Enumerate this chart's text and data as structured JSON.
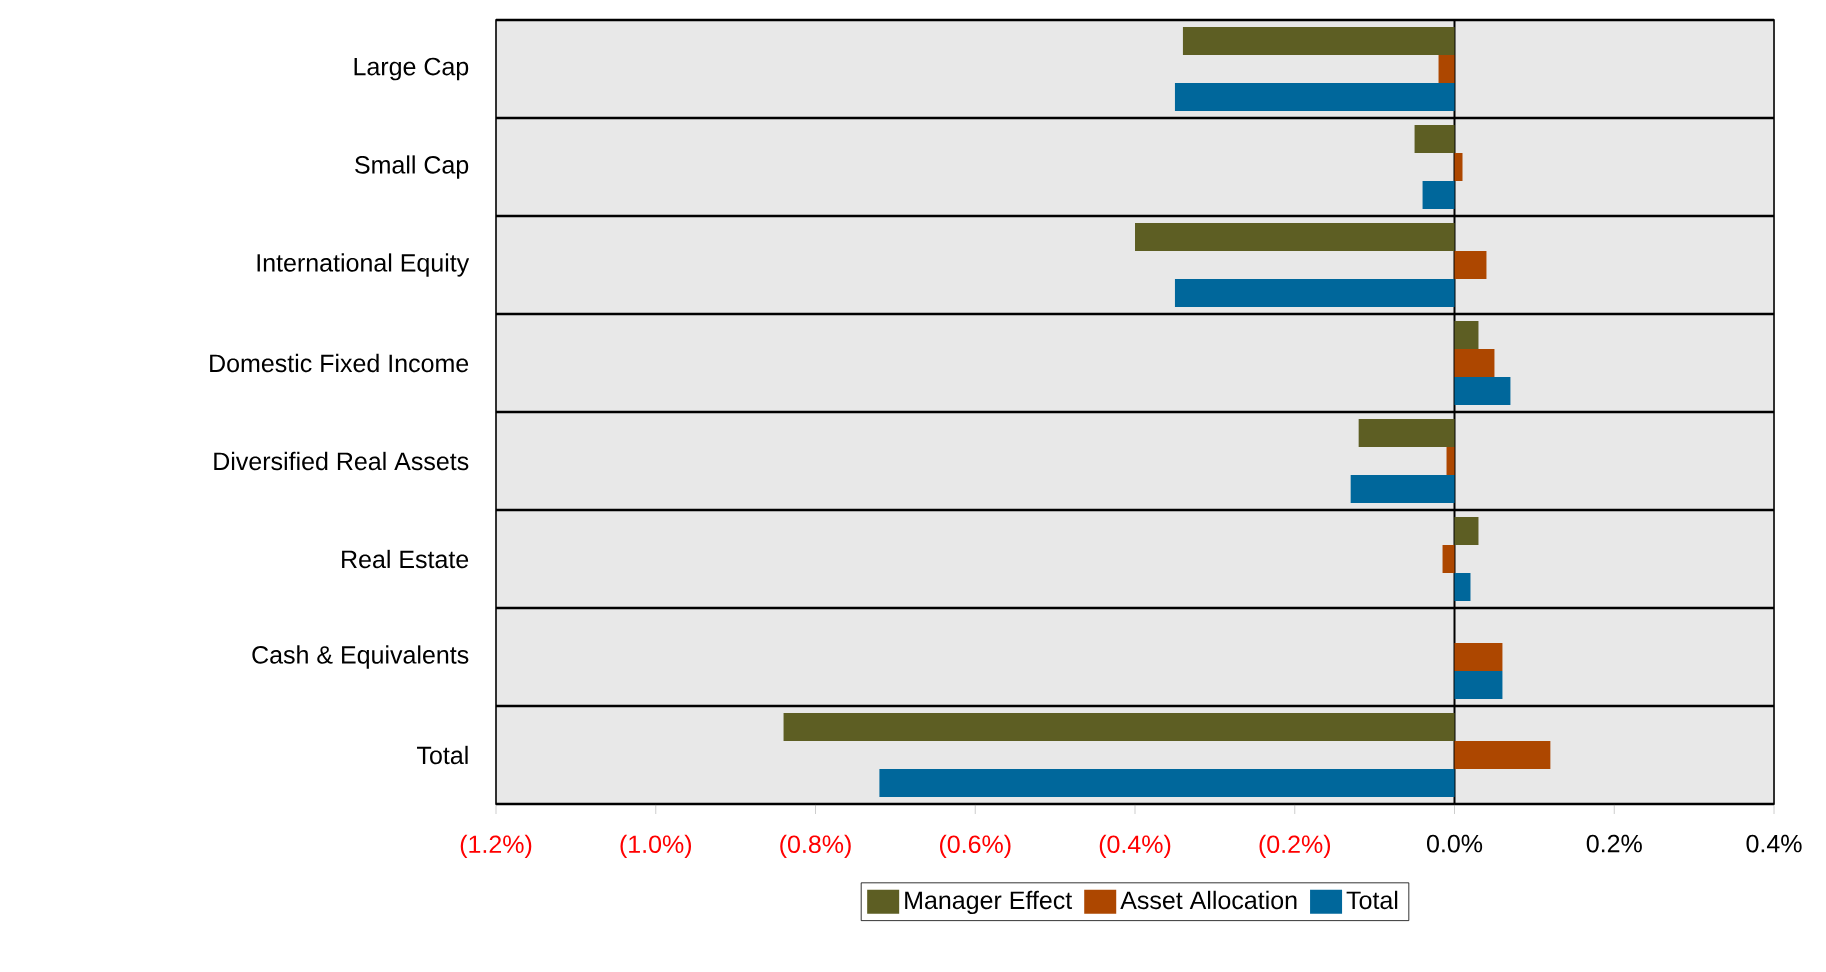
{
  "chart_data": {
    "type": "bar",
    "orientation": "horizontal",
    "categories": [
      "Large Cap",
      "Small Cap",
      "International Equity",
      "Domestic Fixed Income",
      "Diversified Real Assets",
      "Real Estate",
      "Cash & Equivalents",
      "Total"
    ],
    "series": [
      {
        "name": "Manager Effect",
        "color": "#5d5e23",
        "values": [
          -0.34,
          -0.05,
          -0.4,
          0.03,
          -0.12,
          0.03,
          0,
          -0.84
        ]
      },
      {
        "name": "Asset Allocation",
        "color": "#ad4700",
        "values": [
          -0.02,
          0.01,
          0.04,
          0.05,
          -0.01,
          -0.015,
          0.06,
          0.12
        ]
      },
      {
        "name": "Total",
        "color": "#00679b",
        "values": [
          -0.35,
          -0.04,
          -0.35,
          0.07,
          -0.13,
          0.02,
          0.06,
          -0.72
        ]
      }
    ],
    "xlim": [
      -1.2,
      0.4
    ],
    "xticks": [
      {
        "value": -1.2,
        "label": "(1.2%)"
      },
      {
        "value": -1.0,
        "label": "(1.0%)"
      },
      {
        "value": -0.8,
        "label": "(0.8%)"
      },
      {
        "value": -0.6,
        "label": "(0.6%)"
      },
      {
        "value": -0.4,
        "label": "(0.4%)"
      },
      {
        "value": -0.2,
        "label": "(0.2%)"
      },
      {
        "value": 0,
        "label": "0.0%"
      },
      {
        "value": 0.2,
        "label": "0.2%"
      },
      {
        "value": 0.4,
        "label": "0.4%"
      }
    ],
    "legend": "bottom"
  }
}
